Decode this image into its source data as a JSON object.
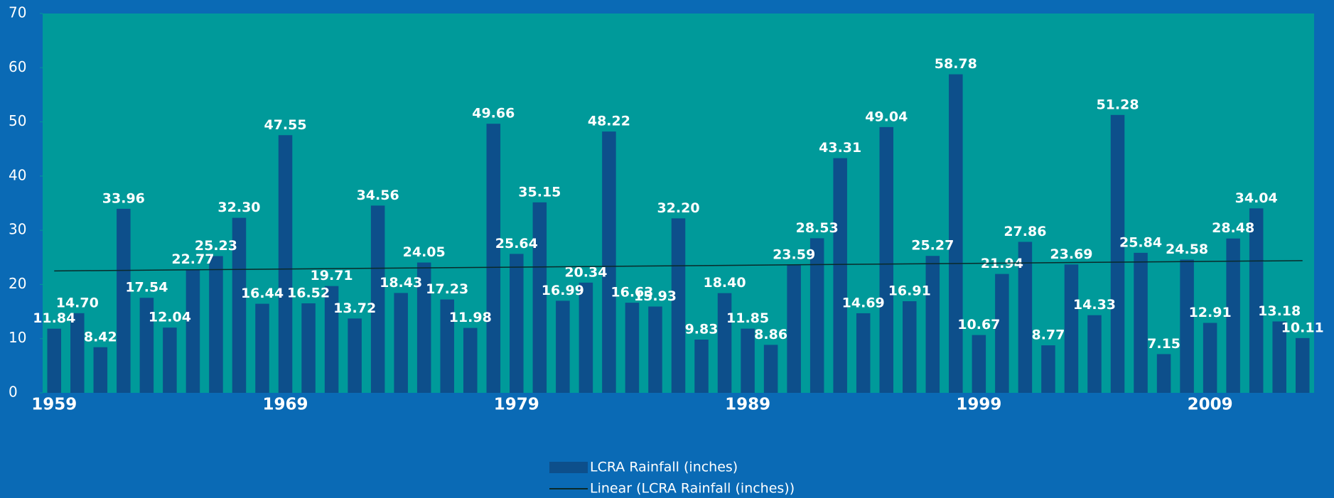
{
  "chart_data": {
    "type": "bar",
    "categories": [
      "1959",
      null,
      null,
      null,
      null,
      null,
      null,
      null,
      null,
      null,
      "1969",
      null,
      null,
      null,
      null,
      null,
      null,
      null,
      null,
      null,
      "1979",
      null,
      null,
      null,
      null,
      null,
      null,
      null,
      null,
      null,
      "1989",
      null,
      null,
      null,
      null,
      null,
      null,
      null,
      null,
      null,
      "1999",
      null,
      null,
      null,
      null,
      null,
      null,
      null,
      null,
      null,
      "2009",
      null,
      null,
      null,
      null
    ],
    "series": [
      {
        "name": "LCRA Rainfall (inches)",
        "color": "#0d4f8b",
        "values": [
          11.84,
          14.7,
          8.42,
          33.96,
          17.54,
          12.04,
          22.77,
          25.23,
          32.3,
          16.44,
          47.55,
          16.52,
          19.71,
          13.72,
          34.56,
          18.43,
          24.05,
          17.23,
          11.98,
          49.66,
          25.64,
          35.15,
          16.99,
          20.34,
          48.22,
          16.63,
          15.93,
          32.2,
          9.83,
          18.4,
          11.85,
          8.86,
          23.59,
          28.53,
          43.31,
          14.69,
          49.04,
          16.91,
          25.27,
          58.78,
          10.67,
          21.94,
          27.86,
          8.77,
          23.69,
          14.33,
          51.28,
          25.84,
          7.15,
          24.58,
          12.91,
          28.48,
          34.04,
          13.18,
          10.11
        ],
        "value_labels": [
          "11.84",
          "14.70",
          "8.42",
          "33.96",
          "17.54",
          "12.04",
          "22.77",
          "25.23",
          "32.30",
          "16.44",
          "47.55",
          "16.52",
          "19.71",
          "13.72",
          "34.56",
          "18.43",
          "24.05",
          "17.23",
          "11.98",
          "49.66",
          "25.64",
          "35.15",
          "16.99",
          "20.34",
          "48.22",
          "16.63",
          "15.93",
          "32.20",
          "9.83",
          "18.40",
          "11.85",
          "8.86",
          "23.59",
          "28.53",
          "43.31",
          "14.69",
          "49.04",
          "16.91",
          "25.27",
          "58.78",
          "10.67",
          "21.94",
          "27.86",
          "8.77",
          "23.69",
          "14.33",
          "51.28",
          "25.84",
          "7.15",
          "24.58",
          "12.91",
          "28.48",
          "34.04",
          "13.18",
          "10.11"
        ]
      }
    ],
    "trend": {
      "name": "Linear (LCRA Rainfall (inches))",
      "color": "#0a2a2a",
      "start": 22.5,
      "end": 24.4
    },
    "ylim": [
      0,
      70
    ],
    "yticks": [
      0,
      10,
      20,
      30,
      40,
      50,
      60,
      70
    ],
    "plot_color": "#009a9a"
  }
}
